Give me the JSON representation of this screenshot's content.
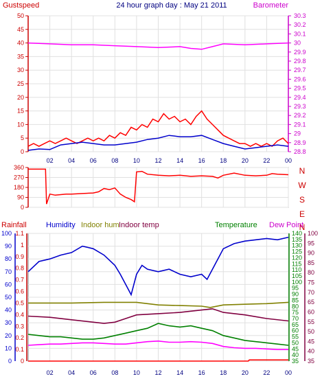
{
  "chart_data": [
    {
      "id": "wind-baro",
      "type": "line",
      "title": "24 hour graph day : May 21 2011",
      "left_axis_label": "Gustspeed",
      "right_axis_label": "Barometer",
      "left_ylim": [
        0,
        50
      ],
      "left_ticks": [
        "0",
        "5",
        "10",
        "15",
        "20",
        "25",
        "30",
        "35",
        "40",
        "45",
        "50"
      ],
      "right_ylim": [
        28.8,
        30.3
      ],
      "right_ticks": [
        "28.8",
        "28.9",
        "29",
        "29.1",
        "29.2",
        "29.3",
        "29.4",
        "29.5",
        "29.6",
        "29.7",
        "29.8",
        "29.9",
        "30",
        "30.1",
        "30.2",
        "30.3"
      ],
      "x_hours": [
        0,
        24
      ],
      "x_ticks": [
        "02",
        "04",
        "06",
        "08",
        "10",
        "12",
        "14",
        "16",
        "18",
        "20",
        "22",
        "00"
      ],
      "grid": true,
      "series": [
        {
          "name": "Gustspeed",
          "color": "#ff0000",
          "x": [
            0,
            0.5,
            1,
            1.5,
            2,
            2.5,
            3,
            3.5,
            4,
            4.5,
            5,
            5.5,
            6,
            6.5,
            7,
            7.5,
            8,
            8.5,
            9,
            9.5,
            10,
            10.5,
            11,
            11.5,
            12,
            12.5,
            13,
            13.5,
            14,
            14.5,
            15,
            15.5,
            16,
            16.5,
            17,
            17.5,
            18,
            18.5,
            19,
            19.5,
            20,
            20.5,
            21,
            21.5,
            22,
            22.5,
            23,
            23.5,
            24
          ],
          "values": [
            2,
            3,
            2,
            3,
            4,
            3,
            4,
            5,
            4,
            3,
            4,
            5,
            4,
            5,
            4,
            6,
            5,
            7,
            6,
            9,
            8,
            10,
            9,
            12,
            11,
            14,
            12,
            13,
            11,
            12,
            10,
            13,
            15,
            12,
            10,
            8,
            6,
            5,
            4,
            3,
            3,
            2,
            3,
            2,
            3,
            2,
            4,
            5,
            3
          ]
        },
        {
          "name": "Wind speed",
          "color": "#0000cc",
          "x": [
            0,
            1,
            2,
            3,
            4,
            5,
            6,
            7,
            8,
            9,
            10,
            11,
            12,
            13,
            14,
            15,
            16,
            17,
            18,
            19,
            20,
            21,
            22,
            23,
            24
          ],
          "values": [
            0.5,
            1,
            0.8,
            2.5,
            3,
            3.5,
            3,
            2.5,
            2.5,
            3,
            3.5,
            4.5,
            5,
            6,
            5.5,
            5.5,
            6,
            4.5,
            3,
            2,
            1,
            1.5,
            2,
            2.5,
            2
          ]
        },
        {
          "name": "Barometer",
          "color": "#ff00ff",
          "x": [
            0,
            2,
            4,
            6,
            8,
            10,
            12,
            14,
            15,
            16,
            17,
            18,
            20,
            22,
            24
          ],
          "values": [
            30.0,
            29.99,
            29.98,
            29.98,
            29.97,
            29.96,
            29.95,
            29.96,
            29.94,
            29.93,
            29.96,
            29.99,
            29.98,
            29.99,
            30.0
          ]
        }
      ]
    },
    {
      "id": "wind-dir",
      "type": "line",
      "ylim": [
        0,
        360
      ],
      "y_ticks": [
        "0",
        "90",
        "180",
        "270",
        "360"
      ],
      "right_labels": [
        "N",
        "W",
        "S",
        "E",
        "N"
      ],
      "x_hours": [
        0,
        24
      ],
      "grid": true,
      "series": [
        {
          "name": "Wind direction",
          "color": "#ff0000",
          "x": [
            0,
            0.8,
            1.6,
            1.7,
            2.0,
            2.5,
            3.0,
            3.5,
            4,
            5,
            6,
            6.5,
            7,
            7.5,
            8,
            8.5,
            9,
            9.5,
            9.8,
            10,
            10.5,
            11,
            12,
            13,
            14,
            15,
            16,
            17,
            17.5,
            18,
            19,
            20,
            21,
            22,
            22.5,
            23,
            24
          ],
          "values": [
            345,
            345,
            345,
            30,
            120,
            110,
            115,
            120,
            120,
            125,
            130,
            140,
            170,
            160,
            175,
            120,
            90,
            70,
            50,
            320,
            325,
            300,
            290,
            285,
            290,
            280,
            285,
            280,
            265,
            290,
            310,
            290,
            285,
            290,
            305,
            300,
            295
          ]
        }
      ]
    },
    {
      "id": "humidity-temp",
      "type": "line",
      "labels": [
        "Rainfall",
        "Humidity",
        "Indoor hum",
        "Indoor temp",
        "Temperature",
        "Dew Point"
      ],
      "rain_ticks": [
        "0",
        "0.1",
        "0.2",
        "0.3",
        "0.4",
        "0.5",
        "0.6",
        "0.7",
        "0.8",
        "0.9",
        "1",
        "1.1"
      ],
      "rain_ylim": [
        0,
        1.1
      ],
      "humidity_ticks": [
        "0",
        "10",
        "20",
        "30",
        "40",
        "50",
        "60",
        "70",
        "80",
        "90",
        "100"
      ],
      "humidity_ylim": [
        0,
        100
      ],
      "temp_ticks": [
        "35",
        "40",
        "45",
        "50",
        "55",
        "60",
        "65",
        "70",
        "75",
        "80",
        "85",
        "90",
        "95",
        "100",
        "105",
        "110",
        "115",
        "120",
        "125",
        "130",
        "135",
        "140"
      ],
      "temp_ylim": [
        35,
        140
      ],
      "dewpoint_ticks": [
        "35",
        "40",
        "45",
        "50",
        "55",
        "60",
        "65",
        "70",
        "75",
        "80",
        "85",
        "90",
        "95",
        "100"
      ],
      "dewpoint_ylim": [
        35,
        100
      ],
      "x_hours": [
        0,
        24
      ],
      "x_ticks": [
        "02",
        "04",
        "06",
        "08",
        "10",
        "12",
        "14",
        "16",
        "18",
        "20",
        "22",
        "00"
      ],
      "grid": true,
      "series": [
        {
          "name": "Rainfall",
          "color": "#ff0000",
          "x": [
            0,
            20.3,
            20.4,
            24
          ],
          "values": [
            0,
            0,
            0.01,
            0.01
          ]
        },
        {
          "name": "Humidity",
          "color": "#0000cc",
          "x": [
            0,
            1,
            2,
            3,
            4,
            5,
            6,
            7,
            8,
            8.5,
            9,
            9.5,
            10,
            10.5,
            11,
            12,
            13,
            14,
            15,
            16,
            16.5,
            17,
            17.5,
            18,
            19,
            20,
            21,
            22,
            23,
            24
          ],
          "values": [
            70,
            78,
            80,
            83,
            85,
            90,
            88,
            83,
            75,
            68,
            60,
            52,
            68,
            75,
            72,
            70,
            72,
            68,
            66,
            68,
            64,
            72,
            80,
            88,
            92,
            94,
            95,
            96,
            95,
            97
          ]
        },
        {
          "name": "Indoor hum",
          "color": "#808000",
          "x": [
            0,
            4,
            7,
            10,
            12,
            14,
            16,
            16.8,
            18,
            20,
            22,
            24
          ],
          "values": [
            45.5,
            45.5,
            46,
            46,
            44,
            43.5,
            43,
            42,
            44,
            44.5,
            45,
            46
          ]
        },
        {
          "name": "Indoor temp",
          "color": "#800040",
          "x": [
            0,
            2,
            4,
            6,
            7,
            8,
            9,
            10,
            12,
            14,
            16,
            17,
            18,
            20,
            22,
            24
          ],
          "values": [
            72,
            71,
            69,
            67,
            66,
            67,
            70,
            73,
            74,
            75,
            77,
            78,
            75,
            73,
            70,
            68
          ]
        },
        {
          "name": "Temperature",
          "color": "#008000",
          "x": [
            0,
            1,
            2,
            3,
            4,
            5,
            6,
            7,
            8,
            9,
            10,
            11,
            12,
            13,
            14,
            15,
            16,
            17,
            18,
            19,
            20,
            21,
            22,
            23,
            24
          ],
          "values": [
            57,
            56,
            55,
            55,
            54,
            53,
            53,
            54,
            56,
            58,
            60,
            62,
            66,
            64,
            63,
            64,
            62,
            60,
            56,
            54,
            52,
            51,
            50,
            49,
            48
          ]
        },
        {
          "name": "Dew Point",
          "color": "#ff00ff",
          "x": [
            0,
            1,
            2,
            3,
            4,
            5,
            6,
            7,
            8,
            9,
            10,
            11,
            12,
            13,
            14,
            15,
            16,
            17,
            18,
            19,
            20,
            21,
            22,
            23,
            24
          ],
          "values": [
            48,
            48.5,
            49,
            49,
            49.5,
            50,
            50,
            49.5,
            49,
            49,
            50,
            51,
            51.5,
            50.5,
            50.5,
            51,
            50.5,
            49.5,
            47,
            46,
            45.5,
            45.5,
            45,
            44.5,
            44.5
          ]
        }
      ]
    }
  ]
}
